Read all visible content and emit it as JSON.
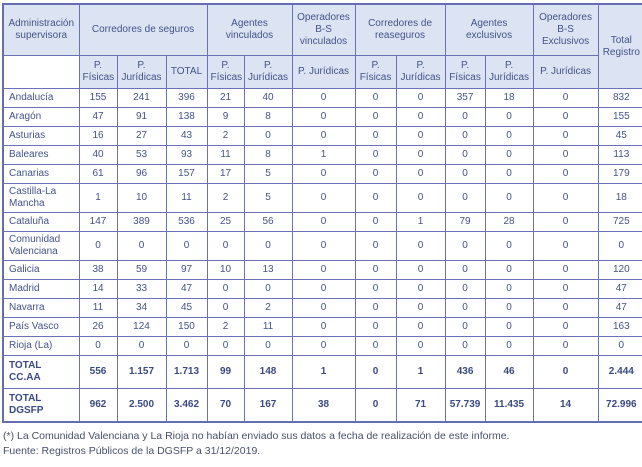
{
  "colors": {
    "header_bg": "#dce3f2",
    "border": "#6b71b5",
    "text": "#44538a",
    "footnote_text": "#47506b"
  },
  "table": {
    "group_headers": {
      "admin": "Administración supervisora",
      "corredores_seguros": "Corredores de seguros",
      "agentes_vinculados": "Agentes vinculados",
      "operadores_bs_vinculados": "Operadores B-S vinculados",
      "corredores_reaseguros": "Corredores de reaseguros",
      "agentes_exclusivos": "Agentes exclusivos",
      "operadores_bs_exclusivos": "Operadores B-S Exclusivos",
      "total_registro": "Total Registro"
    },
    "sub_headers": {
      "c1": "P. Físicas",
      "c2": "P. Jurídicas",
      "c3": "TOTAL",
      "c4": "P. Físicas",
      "c5": "P. Jurídicas",
      "c6": "P. Jurídicas",
      "c7": "P. Físicas",
      "c8": "P. Jurídicas",
      "c9": "P. Físicas",
      "c10": "P. Jurídicas",
      "c11": "P. Jurídicas"
    },
    "rows": [
      {
        "label": "Andalucía",
        "values": [
          "155",
          "241",
          "396",
          "21",
          "40",
          "0",
          "0",
          "0",
          "357",
          "18",
          "0",
          "832"
        ]
      },
      {
        "label": "Aragón",
        "values": [
          "47",
          "91",
          "138",
          "9",
          "8",
          "0",
          "0",
          "0",
          "0",
          "0",
          "0",
          "155"
        ]
      },
      {
        "label": "Asturias",
        "values": [
          "16",
          "27",
          "43",
          "2",
          "0",
          "0",
          "0",
          "0",
          "0",
          "0",
          "0",
          "45"
        ]
      },
      {
        "label": "Baleares",
        "values": [
          "40",
          "53",
          "93",
          "11",
          "8",
          "1",
          "0",
          "0",
          "0",
          "0",
          "0",
          "113"
        ]
      },
      {
        "label": "Canarias",
        "values": [
          "61",
          "96",
          "157",
          "17",
          "5",
          "0",
          "0",
          "0",
          "0",
          "0",
          "0",
          "179"
        ]
      },
      {
        "label": "Castilla-La Mancha",
        "values": [
          "1",
          "10",
          "11",
          "2",
          "5",
          "0",
          "0",
          "0",
          "0",
          "0",
          "0",
          "18"
        ]
      },
      {
        "label": "Cataluña",
        "values": [
          "147",
          "389",
          "536",
          "25",
          "56",
          "0",
          "0",
          "1",
          "79",
          "28",
          "0",
          "725"
        ]
      },
      {
        "label": "Comunidad Valenciana",
        "values": [
          "0",
          "0",
          "0",
          "0",
          "0",
          "0",
          "0",
          "0",
          "0",
          "0",
          "0",
          "0"
        ]
      },
      {
        "label": "Galicia",
        "values": [
          "38",
          "59",
          "97",
          "10",
          "13",
          "0",
          "0",
          "0",
          "0",
          "0",
          "0",
          "120"
        ]
      },
      {
        "label": "Madrid",
        "values": [
          "14",
          "33",
          "47",
          "0",
          "0",
          "0",
          "0",
          "0",
          "0",
          "0",
          "0",
          "47"
        ]
      },
      {
        "label": "Navarra",
        "values": [
          "11",
          "34",
          "45",
          "0",
          "2",
          "0",
          "0",
          "0",
          "0",
          "0",
          "0",
          "47"
        ]
      },
      {
        "label": "País Vasco",
        "values": [
          "26",
          "124",
          "150",
          "2",
          "11",
          "0",
          "0",
          "0",
          "0",
          "0",
          "0",
          "163"
        ]
      },
      {
        "label": "Rioja (La)",
        "values": [
          "0",
          "0",
          "0",
          "0",
          "0",
          "0",
          "0",
          "0",
          "0",
          "0",
          "0",
          "0"
        ]
      }
    ],
    "total_rows": [
      {
        "label": "TOTAL CC.AA",
        "values": [
          "556",
          "1.157",
          "1.713",
          "99",
          "148",
          "1",
          "0",
          "1",
          "436",
          "46",
          "0",
          "2.444"
        ]
      },
      {
        "label": "TOTAL DGSFP",
        "values": [
          "962",
          "2.500",
          "3.462",
          "70",
          "167",
          "38",
          "0",
          "71",
          "57.739",
          "11.435",
          "14",
          "72.996"
        ]
      }
    ]
  },
  "footnotes": {
    "note": "(*) La Comunidad Valenciana y La Rioja no habían enviado sus datos a fecha de realización de este informe.",
    "source": "Fuente: Registros Públicos de la DGSFP a 31/12/2019."
  }
}
